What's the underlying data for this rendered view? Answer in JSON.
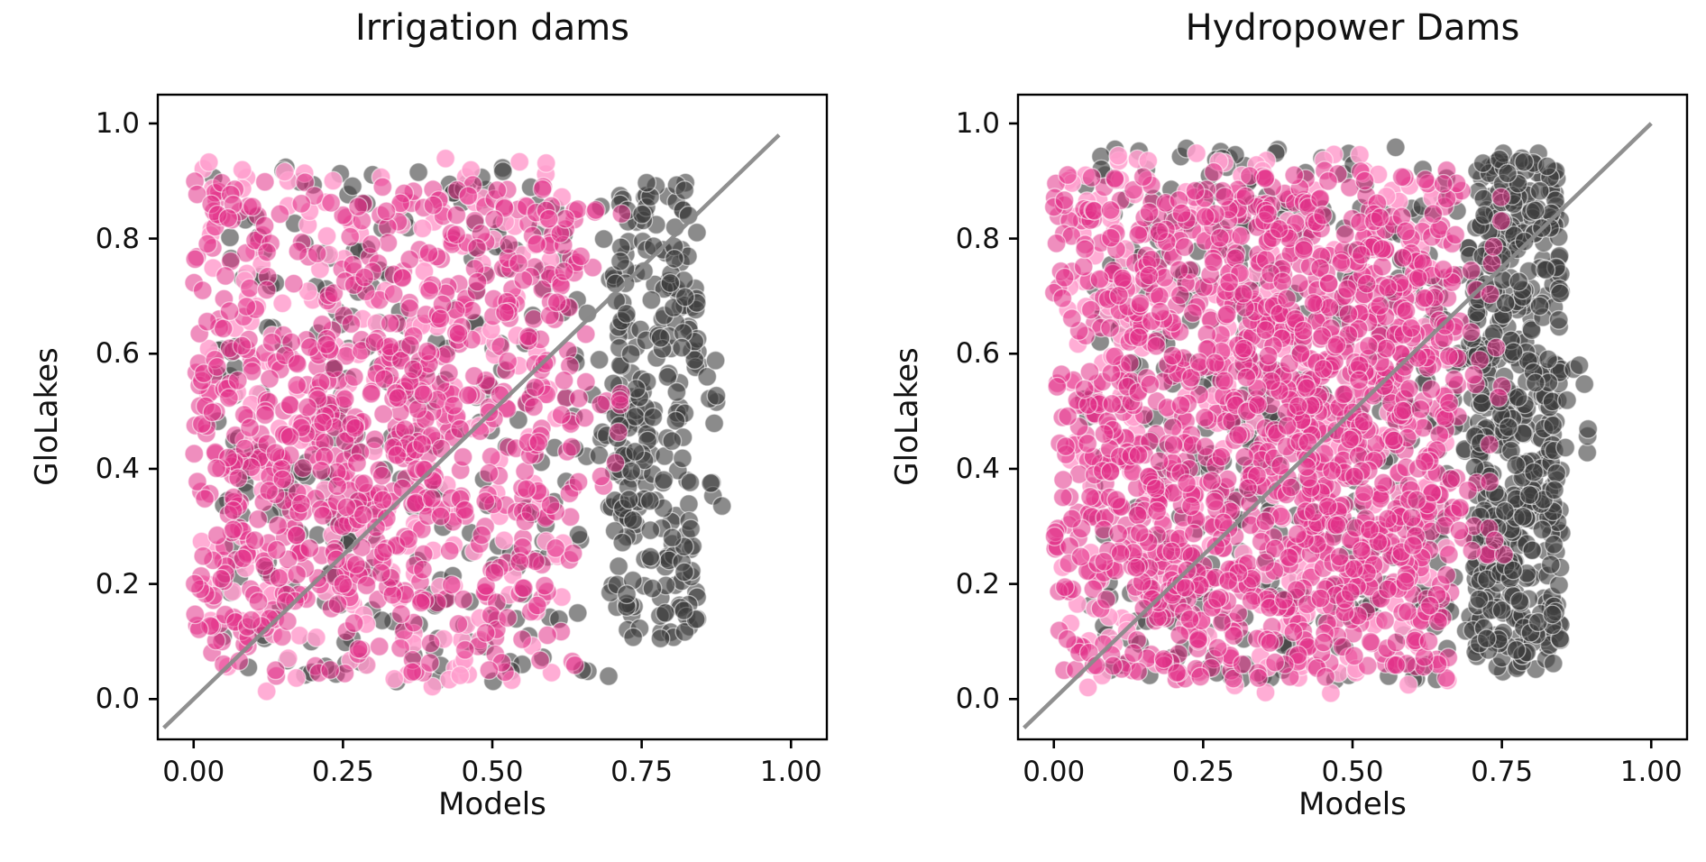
{
  "figure": {
    "background": "#ffffff",
    "axis_color": "#000000",
    "text_color": "#111111"
  },
  "chart_data": [
    {
      "type": "scatter",
      "title": "Irrigation dams",
      "xlabel": "Models",
      "ylabel": "GloLakes",
      "xlim": [
        -0.06,
        1.06
      ],
      "ylim": [
        -0.07,
        1.05
      ],
      "x_ticks": [
        0,
        0.25,
        0.5,
        0.75,
        1.0
      ],
      "x_tick_labels": [
        "0.00",
        "0.25",
        "0.50",
        "0.75",
        "1.00"
      ],
      "y_ticks": [
        0,
        0.2,
        0.4,
        0.6,
        0.8,
        1.0
      ],
      "y_tick_labels": [
        "0.0",
        "0.2",
        "0.4",
        "0.6",
        "0.8",
        "1.0"
      ],
      "grid": false,
      "legend": null,
      "identity_line": {
        "x1": -0.05,
        "y1": -0.05,
        "x2": 0.98,
        "y2": 0.98,
        "color": "#8a8a8a",
        "width": 4.5,
        "opacity": 0.95
      },
      "marker": {
        "radius_px": 10.3,
        "edge_color": "#ffffff",
        "edge_opacity": 0.55,
        "edge_width": 1.4
      },
      "series": [
        {
          "name": "models-dark-gray",
          "color": "#3d3d3d",
          "alpha": 0.6,
          "seed": 101,
          "clusters": [
            {
              "count": 340,
              "x": [
                0.03,
                0.76
              ],
              "y": [
                0.03,
                0.93
              ]
            },
            {
              "count": 235,
              "x": [
                0.7,
                0.845
              ],
              "y": [
                0.1,
                0.9
              ]
            },
            {
              "count": 12,
              "x": [
                0.8,
                0.895
              ],
              "y": [
                0.28,
                0.62
              ]
            }
          ]
        },
        {
          "name": "models-light-pink",
          "color": "#ff9fce",
          "alpha": 0.85,
          "seed": 202,
          "clusters": [
            {
              "count": 240,
              "x": [
                0.01,
                0.62
              ],
              "y": [
                0.01,
                0.94
              ]
            }
          ]
        },
        {
          "name": "models-magenta",
          "color": "#e23189",
          "alpha": 0.55,
          "seed": 303,
          "clusters": [
            {
              "count": 520,
              "x": [
                0.0,
                0.64
              ],
              "y": [
                0.04,
                0.9
              ]
            },
            {
              "count": 180,
              "x": [
                0.0,
                0.4
              ],
              "y": [
                0.12,
                0.62
              ]
            },
            {
              "count": 120,
              "x": [
                0.25,
                0.72
              ],
              "y": [
                0.3,
                0.86
              ]
            }
          ]
        }
      ]
    },
    {
      "type": "scatter",
      "title": "Hydropower Dams",
      "xlabel": "Models",
      "ylabel": "GloLakes",
      "xlim": [
        -0.06,
        1.06
      ],
      "ylim": [
        -0.07,
        1.05
      ],
      "x_ticks": [
        0,
        0.25,
        0.5,
        0.75,
        1.0
      ],
      "x_tick_labels": [
        "0.00",
        "0.25",
        "0.50",
        "0.75",
        "1.00"
      ],
      "y_ticks": [
        0,
        0.2,
        0.4,
        0.6,
        0.8,
        1.0
      ],
      "y_tick_labels": [
        "0.0",
        "0.2",
        "0.4",
        "0.6",
        "0.8",
        "1.0"
      ],
      "grid": false,
      "legend": null,
      "identity_line": {
        "x1": -0.05,
        "y1": -0.05,
        "x2": 1.0,
        "y2": 1.0,
        "color": "#8a8a8a",
        "width": 4.5,
        "opacity": 0.95
      },
      "marker": {
        "radius_px": 10.3,
        "edge_color": "#ffffff",
        "edge_opacity": 0.55,
        "edge_width": 1.4
      },
      "series": [
        {
          "name": "models-dark-gray",
          "color": "#3d3d3d",
          "alpha": 0.6,
          "seed": 404,
          "clusters": [
            {
              "count": 480,
              "x": [
                0.05,
                0.78
              ],
              "y": [
                0.03,
                0.96
              ]
            },
            {
              "count": 470,
              "x": [
                0.7,
                0.85
              ],
              "y": [
                0.05,
                0.95
              ]
            },
            {
              "count": 8,
              "x": [
                0.84,
                0.9
              ],
              "y": [
                0.42,
                0.58
              ]
            }
          ]
        },
        {
          "name": "models-light-pink",
          "color": "#ff9fce",
          "alpha": 0.85,
          "seed": 505,
          "clusters": [
            {
              "count": 330,
              "x": [
                0.01,
                0.66
              ],
              "y": [
                0.01,
                0.96
              ]
            }
          ]
        },
        {
          "name": "models-magenta",
          "color": "#e23189",
          "alpha": 0.55,
          "seed": 606,
          "clusters": [
            {
              "count": 950,
              "x": [
                0.0,
                0.68
              ],
              "y": [
                0.03,
                0.92
              ]
            },
            {
              "count": 280,
              "x": [
                0.08,
                0.6
              ],
              "y": [
                0.15,
                0.85
              ]
            },
            {
              "count": 160,
              "x": [
                0.35,
                0.76
              ],
              "y": [
                0.25,
                0.92
              ]
            }
          ]
        }
      ]
    }
  ]
}
